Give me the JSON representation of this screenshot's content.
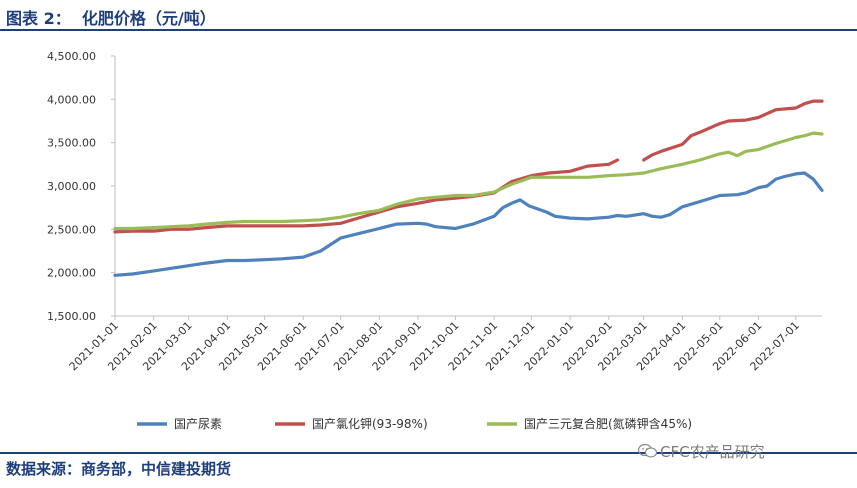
{
  "header": {
    "title": "图表 2：  化肥价格（元/吨）"
  },
  "footer": {
    "source": "数据来源：商务部，中信建投期货"
  },
  "watermark": {
    "text": "CFC农产品研究"
  },
  "chart_data": {
    "type": "line",
    "title": "图表 2：  化肥价格（元/吨）",
    "xlabel": "",
    "ylabel": "",
    "ylim": [
      1500,
      4500
    ],
    "y_ticks": [
      "1,500.00",
      "2,000.00",
      "2,500.00",
      "3,000.00",
      "3,500.00",
      "4,000.00",
      "4,500.00"
    ],
    "x_range": [
      "2021-01-01",
      "2022-07-22"
    ],
    "x_ticks": [
      "2021-01-01",
      "2021-02-01",
      "2021-03-01",
      "2021-04-01",
      "2021-05-01",
      "2021-06-01",
      "2021-07-01",
      "2021-08-01",
      "2021-09-01",
      "2021-10-01",
      "2021-11-01",
      "2021-12-01",
      "2022-01-01",
      "2022-02-01",
      "2022-03-01",
      "2022-04-01",
      "2022-05-01",
      "2022-06-01",
      "2022-07-01"
    ],
    "grid": false,
    "legend": "bottom",
    "series": [
      {
        "name": "国产尿素",
        "color": "#4f81bd",
        "points": [
          [
            "2021-01-01",
            1970
          ],
          [
            "2021-01-15",
            1985
          ],
          [
            "2021-02-01",
            2020
          ],
          [
            "2021-02-15",
            2050
          ],
          [
            "2021-03-01",
            2080
          ],
          [
            "2021-03-15",
            2110
          ],
          [
            "2021-04-01",
            2140
          ],
          [
            "2021-04-15",
            2140
          ],
          [
            "2021-05-01",
            2150
          ],
          [
            "2021-05-15",
            2160
          ],
          [
            "2021-06-01",
            2180
          ],
          [
            "2021-06-15",
            2250
          ],
          [
            "2021-07-01",
            2400
          ],
          [
            "2021-07-15",
            2450
          ],
          [
            "2021-08-01",
            2510
          ],
          [
            "2021-08-15",
            2560
          ],
          [
            "2021-09-01",
            2570
          ],
          [
            "2021-09-08",
            2560
          ],
          [
            "2021-09-15",
            2530
          ],
          [
            "2021-10-01",
            2510
          ],
          [
            "2021-10-15",
            2560
          ],
          [
            "2021-11-01",
            2650
          ],
          [
            "2021-11-08",
            2750
          ],
          [
            "2021-11-15",
            2800
          ],
          [
            "2021-11-22",
            2840
          ],
          [
            "2021-11-29",
            2770
          ],
          [
            "2021-12-13",
            2700
          ],
          [
            "2021-12-20",
            2650
          ],
          [
            "2022-01-01",
            2630
          ],
          [
            "2022-01-15",
            2620
          ],
          [
            "2022-02-01",
            2640
          ],
          [
            "2022-02-08",
            2660
          ],
          [
            "2022-02-15",
            2650
          ],
          [
            "2022-03-01",
            2680
          ],
          [
            "2022-03-08",
            2650
          ],
          [
            "2022-03-15",
            2640
          ],
          [
            "2022-03-22",
            2670
          ],
          [
            "2022-04-01",
            2760
          ],
          [
            "2022-04-15",
            2820
          ],
          [
            "2022-05-01",
            2890
          ],
          [
            "2022-05-15",
            2900
          ],
          [
            "2022-05-22",
            2920
          ],
          [
            "2022-06-01",
            2980
          ],
          [
            "2022-06-08",
            3000
          ],
          [
            "2022-06-15",
            3080
          ],
          [
            "2022-06-22",
            3110
          ],
          [
            "2022-07-01",
            3140
          ],
          [
            "2022-07-08",
            3150
          ],
          [
            "2022-07-15",
            3080
          ],
          [
            "2022-07-22",
            2950
          ]
        ]
      },
      {
        "name": "国产氯化钾(93-98%)",
        "color": "#c0504d",
        "points": [
          [
            "2021-01-01",
            2470
          ],
          [
            "2021-01-15",
            2480
          ],
          [
            "2021-02-01",
            2480
          ],
          [
            "2021-02-15",
            2500
          ],
          [
            "2021-03-01",
            2500
          ],
          [
            "2021-03-15",
            2520
          ],
          [
            "2021-04-01",
            2540
          ],
          [
            "2021-04-15",
            2540
          ],
          [
            "2021-05-01",
            2540
          ],
          [
            "2021-05-15",
            2540
          ],
          [
            "2021-06-01",
            2540
          ],
          [
            "2021-06-15",
            2550
          ],
          [
            "2021-07-01",
            2570
          ],
          [
            "2021-07-15",
            2630
          ],
          [
            "2021-08-01",
            2700
          ],
          [
            "2021-08-15",
            2760
          ],
          [
            "2021-09-01",
            2800
          ],
          [
            "2021-09-15",
            2840
          ],
          [
            "2021-10-01",
            2860
          ],
          [
            "2021-10-15",
            2880
          ],
          [
            "2021-11-01",
            2920
          ],
          [
            "2021-11-15",
            3050
          ],
          [
            "2021-12-01",
            3120
          ],
          [
            "2021-12-15",
            3150
          ],
          [
            "2022-01-01",
            3170
          ],
          [
            "2022-01-15",
            3230
          ],
          [
            "2022-02-01",
            3250
          ],
          [
            "2022-02-08",
            3300
          ],
          null,
          [
            "2022-03-01",
            3300
          ],
          [
            "2022-03-08",
            3360
          ],
          [
            "2022-03-15",
            3400
          ],
          [
            "2022-04-01",
            3480
          ],
          [
            "2022-04-08",
            3580
          ],
          [
            "2022-04-15",
            3620
          ],
          [
            "2022-05-01",
            3720
          ],
          [
            "2022-05-08",
            3750
          ],
          [
            "2022-05-22",
            3760
          ],
          [
            "2022-06-01",
            3790
          ],
          [
            "2022-06-15",
            3880
          ],
          [
            "2022-07-01",
            3900
          ],
          [
            "2022-07-08",
            3950
          ],
          [
            "2022-07-15",
            3980
          ],
          [
            "2022-07-22",
            3980
          ]
        ]
      },
      {
        "name": "国产三元复合肥(氮磷钾含45%)",
        "color": "#9bbb59",
        "points": [
          [
            "2021-01-01",
            2510
          ],
          [
            "2021-01-15",
            2510
          ],
          [
            "2021-02-01",
            2520
          ],
          [
            "2021-02-15",
            2530
          ],
          [
            "2021-03-01",
            2540
          ],
          [
            "2021-03-15",
            2560
          ],
          [
            "2021-04-01",
            2580
          ],
          [
            "2021-04-15",
            2590
          ],
          [
            "2021-05-01",
            2590
          ],
          [
            "2021-05-15",
            2590
          ],
          [
            "2021-06-01",
            2600
          ],
          [
            "2021-06-15",
            2610
          ],
          [
            "2021-07-01",
            2640
          ],
          [
            "2021-07-15",
            2680
          ],
          [
            "2021-08-01",
            2720
          ],
          [
            "2021-08-15",
            2790
          ],
          [
            "2021-09-01",
            2850
          ],
          [
            "2021-09-15",
            2870
          ],
          [
            "2021-10-01",
            2890
          ],
          [
            "2021-10-15",
            2890
          ],
          [
            "2021-11-01",
            2930
          ],
          [
            "2021-11-15",
            3020
          ],
          [
            "2021-12-01",
            3100
          ],
          [
            "2021-12-15",
            3100
          ],
          [
            "2022-01-01",
            3100
          ],
          [
            "2022-01-15",
            3100
          ],
          [
            "2022-02-01",
            3120
          ],
          [
            "2022-02-15",
            3130
          ],
          [
            "2022-03-01",
            3150
          ],
          [
            "2022-03-15",
            3200
          ],
          [
            "2022-04-01",
            3250
          ],
          [
            "2022-04-15",
            3300
          ],
          [
            "2022-05-01",
            3370
          ],
          [
            "2022-05-08",
            3390
          ],
          [
            "2022-05-15",
            3350
          ],
          [
            "2022-05-22",
            3400
          ],
          [
            "2022-06-01",
            3420
          ],
          [
            "2022-06-15",
            3490
          ],
          [
            "2022-07-01",
            3560
          ],
          [
            "2022-07-08",
            3580
          ],
          [
            "2022-07-15",
            3610
          ],
          [
            "2022-07-22",
            3600
          ]
        ]
      }
    ]
  }
}
